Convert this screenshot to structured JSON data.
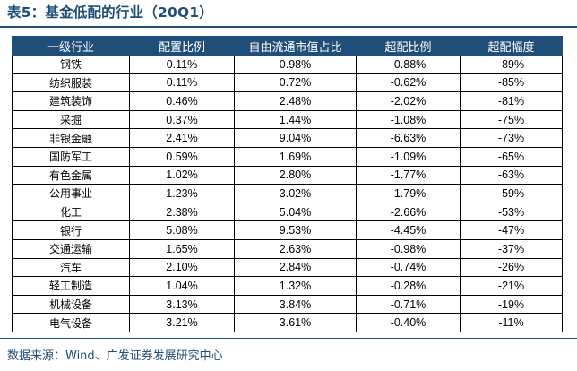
{
  "title": "表5：基金低配的行业（20Q1）",
  "table": {
    "headers": [
      "一级行业",
      "配置比例",
      "自由流通市值占比",
      "超配比例",
      "超配幅度"
    ],
    "rows": [
      [
        "钢铁",
        "0.11%",
        "0.98%",
        "-0.88%",
        "-89%"
      ],
      [
        "纺织服装",
        "0.11%",
        "0.72%",
        "-0.62%",
        "-85%"
      ],
      [
        "建筑装饰",
        "0.46%",
        "2.48%",
        "-2.02%",
        "-81%"
      ],
      [
        "采掘",
        "0.37%",
        "1.44%",
        "-1.08%",
        "-75%"
      ],
      [
        "非银金融",
        "2.41%",
        "9.04%",
        "-6.63%",
        "-73%"
      ],
      [
        "国防军工",
        "0.59%",
        "1.69%",
        "-1.09%",
        "-65%"
      ],
      [
        "有色金属",
        "1.02%",
        "2.80%",
        "-1.77%",
        "-63%"
      ],
      [
        "公用事业",
        "1.23%",
        "3.02%",
        "-1.79%",
        "-59%"
      ],
      [
        "化工",
        "2.38%",
        "5.04%",
        "-2.66%",
        "-53%"
      ],
      [
        "银行",
        "5.08%",
        "9.53%",
        "-4.45%",
        "-47%"
      ],
      [
        "交通运输",
        "1.65%",
        "2.63%",
        "-0.98%",
        "-37%"
      ],
      [
        "汽车",
        "2.10%",
        "2.84%",
        "-0.74%",
        "-26%"
      ],
      [
        "轻工制造",
        "1.04%",
        "1.32%",
        "-0.28%",
        "-21%"
      ],
      [
        "机械设备",
        "3.13%",
        "3.84%",
        "-0.71%",
        "-19%"
      ],
      [
        "电气设备",
        "3.21%",
        "3.61%",
        "-0.40%",
        "-11%"
      ]
    ]
  },
  "source": "数据来源：Wind、广发证券发展研究中心",
  "colors": {
    "accent": "#1f4e79",
    "header_text": "#ffffff"
  }
}
